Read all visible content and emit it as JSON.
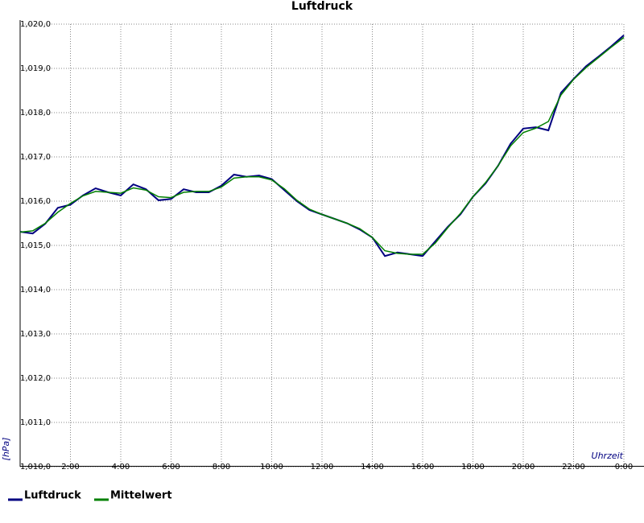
{
  "chart_data": {
    "type": "line",
    "title": "Luftdruck",
    "y_label": "[hPa]",
    "x_label": "Uhrzeit",
    "x": [
      0,
      0.5,
      1,
      1.5,
      2,
      2.5,
      3,
      3.5,
      4,
      4.5,
      5,
      5.5,
      6,
      6.5,
      7,
      7.5,
      8,
      8.5,
      9,
      9.5,
      10,
      10.5,
      11,
      11.5,
      12,
      12.5,
      13,
      13.5,
      14,
      14.5,
      15,
      15.5,
      16,
      16.5,
      17,
      17.5,
      18,
      18.5,
      19,
      19.5,
      20,
      20.5,
      21,
      21.5,
      22,
      22.5,
      23,
      23.5,
      24
    ],
    "series": [
      {
        "name": "Luftdruck",
        "color": "#000080",
        "values": [
          1015.31,
          1015.27,
          1015.49,
          1015.85,
          1015.92,
          1016.13,
          1016.29,
          1016.2,
          1016.13,
          1016.38,
          1016.27,
          1016.02,
          1016.05,
          1016.27,
          1016.2,
          1016.2,
          1016.35,
          1016.6,
          1016.55,
          1016.58,
          1016.5,
          1016.25,
          1016.0,
          1015.8,
          1015.7,
          1015.6,
          1015.5,
          1015.36,
          1015.18,
          1014.76,
          1014.84,
          1014.8,
          1014.76,
          1015.09,
          1015.42,
          1015.7,
          1016.1,
          1016.4,
          1016.8,
          1017.3,
          1017.64,
          1017.67,
          1017.6,
          1018.45,
          1018.76,
          1019.05,
          1019.27,
          1019.5,
          1019.75
        ]
      },
      {
        "name": "Mittelwert",
        "color": "#008000",
        "values": [
          1015.3,
          1015.33,
          1015.5,
          1015.75,
          1015.95,
          1016.12,
          1016.22,
          1016.2,
          1016.18,
          1016.3,
          1016.25,
          1016.1,
          1016.08,
          1016.2,
          1016.22,
          1016.22,
          1016.32,
          1016.52,
          1016.55,
          1016.55,
          1016.48,
          1016.28,
          1016.02,
          1015.82,
          1015.7,
          1015.6,
          1015.5,
          1015.38,
          1015.18,
          1014.88,
          1014.82,
          1014.8,
          1014.8,
          1015.05,
          1015.4,
          1015.72,
          1016.1,
          1016.42,
          1016.8,
          1017.25,
          1017.55,
          1017.65,
          1017.8,
          1018.4,
          1018.75,
          1019.02,
          1019.25,
          1019.48,
          1019.7
        ]
      }
    ],
    "xlim": [
      0,
      24
    ],
    "xticks": [
      {
        "value": 2,
        "label": "2:00"
      },
      {
        "value": 4,
        "label": "4:00"
      },
      {
        "value": 6,
        "label": "6:00"
      },
      {
        "value": 8,
        "label": "8:00"
      },
      {
        "value": 10,
        "label": "10:00"
      },
      {
        "value": 12,
        "label": "12:00"
      },
      {
        "value": 14,
        "label": "14:00"
      },
      {
        "value": 16,
        "label": "16:00"
      },
      {
        "value": 18,
        "label": "18:00"
      },
      {
        "value": 20,
        "label": "20:00"
      },
      {
        "value": 22,
        "label": "22:00"
      },
      {
        "value": 24,
        "label": "0:00"
      }
    ],
    "ylim": [
      1010,
      1020
    ],
    "yticks": [
      {
        "value": 1010,
        "label": "1,010,0"
      },
      {
        "value": 1011,
        "label": "1,011,0"
      },
      {
        "value": 1012,
        "label": "1,012,0"
      },
      {
        "value": 1013,
        "label": "1,013,0"
      },
      {
        "value": 1014,
        "label": "1,014,0"
      },
      {
        "value": 1015,
        "label": "1,015,0"
      },
      {
        "value": 1016,
        "label": "1,016,0"
      },
      {
        "value": 1017,
        "label": "1,017,0"
      },
      {
        "value": 1018,
        "label": "1,018,0"
      },
      {
        "value": 1019,
        "label": "1,019,0"
      },
      {
        "value": 1020,
        "label": "1,020,0"
      }
    ],
    "grid": true
  }
}
